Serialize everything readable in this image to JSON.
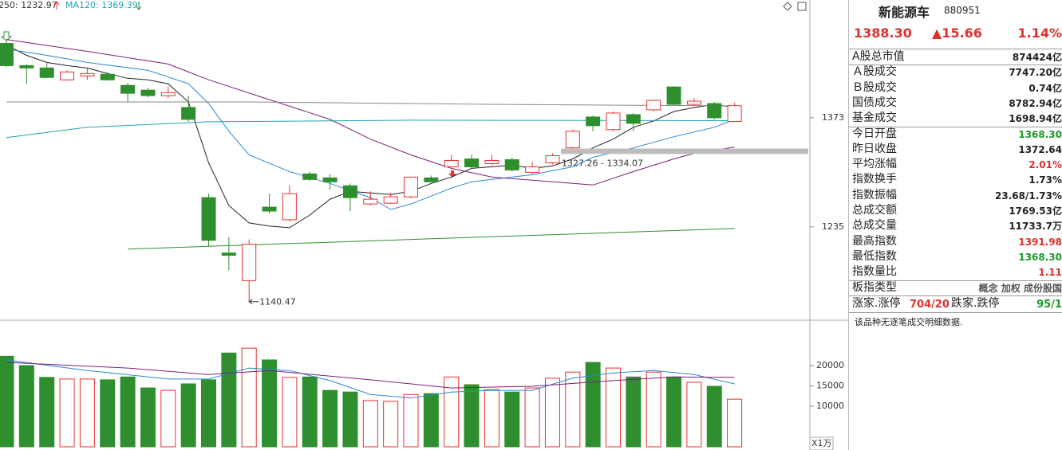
{
  "chart_data": [
    {
      "type": "candlestick",
      "open": [
        1467,
        1439,
        1436,
        1421,
        1426,
        1428,
        1414,
        1408,
        1401,
        1386,
        1272,
        1202,
        1167,
        1260,
        1244,
        1302,
        1297,
        1287,
        1264,
        1265,
        1273,
        1297,
        1311,
        1321,
        1315,
        1320,
        1304,
        1316,
        1335,
        1374,
        1358,
        1377,
        1383,
        1412,
        1390,
        1391,
        1368.3
      ],
      "high": [
        1470,
        1441,
        1443,
        1433,
        1435,
        1431,
        1417,
        1411,
        1413,
        1401,
        1277,
        1222,
        1219,
        1277,
        1288,
        1305,
        1302,
        1290,
        1280,
        1278,
        1298,
        1300,
        1326,
        1326,
        1326,
        1323,
        1317,
        1328,
        1358,
        1376,
        1381,
        1379,
        1396,
        1413,
        1398,
        1393,
        1391.98
      ],
      "low": [
        1437,
        1416,
        1423,
        1420,
        1421,
        1420,
        1393,
        1399,
        1398,
        1368,
        1210,
        1180,
        1140.47,
        1252,
        1242,
        1293,
        1282,
        1255,
        1262,
        1264,
        1271,
        1292,
        1310,
        1309,
        1313,
        1305,
        1302,
        1314,
        1334,
        1356,
        1356,
        1356,
        1381,
        1389,
        1388,
        1371,
        1368.3
      ],
      "close": [
        1439,
        1436,
        1424,
        1431,
        1429,
        1421,
        1404,
        1401,
        1405,
        1371,
        1218,
        1199,
        1213,
        1255,
        1277,
        1295,
        1292,
        1272,
        1270,
        1273,
        1298,
        1292,
        1319,
        1311,
        1319,
        1307,
        1311,
        1325,
        1356,
        1363,
        1379,
        1366,
        1395,
        1390,
        1394,
        1373,
        1388.3
      ],
      "colors": {
        "up": "#e8312f",
        "down": "#2f8f2f"
      },
      "ylim": [
        1119,
        1522
      ],
      "yticks": [
        1235,
        1373
      ],
      "lines": [
        {
          "color": "#222222",
          "x": [
            0,
            1,
            2,
            3,
            4,
            5,
            6,
            7,
            8,
            9,
            10,
            11,
            12,
            13,
            14,
            15,
            16,
            17,
            18,
            19,
            20,
            21,
            22,
            23,
            24,
            25,
            26,
            27,
            28,
            29,
            30,
            31,
            32,
            33,
            34,
            35,
            36
          ],
          "values": [
            1465,
            1452,
            1443,
            1439,
            1436,
            1429,
            1423,
            1421,
            1416,
            1393,
            1316,
            1262,
            1240,
            1236,
            1234,
            1250,
            1270,
            1280,
            1278,
            1276,
            1280,
            1290,
            1298,
            1309,
            1311,
            1313,
            1309,
            1312,
            1321,
            1335,
            1346,
            1361,
            1369,
            1381,
            1386,
            1390,
            1386
          ]
        },
        {
          "color": "#2a8ad0",
          "x": [
            0,
            2,
            4,
            7,
            9,
            10,
            11,
            12,
            14,
            16,
            18,
            19,
            20,
            21,
            22,
            23,
            25,
            26,
            28,
            29,
            31,
            33,
            35,
            36
          ],
          "values": [
            1460,
            1452,
            1443,
            1433,
            1416,
            1391,
            1356,
            1326,
            1305,
            1290,
            1272,
            1257,
            1264,
            1274,
            1284,
            1292,
            1298,
            1301,
            1311,
            1323,
            1335,
            1349,
            1361,
            1371
          ]
        },
        {
          "color": "#7a1f7a",
          "x": [
            0,
            4,
            8,
            10,
            13,
            16,
            18,
            20,
            22,
            24,
            27,
            29,
            31,
            33,
            34,
            36
          ],
          "values": [
            1472,
            1457,
            1441,
            1421,
            1396,
            1371,
            1346,
            1326,
            1309,
            1298,
            1292,
            1288,
            1305,
            1321,
            1328,
            1336
          ]
        },
        {
          "color": "#888888",
          "x": [
            0,
            12,
            24,
            36
          ],
          "values": [
            1393,
            1393,
            1390,
            1388
          ]
        },
        {
          "name": "MA120: 1369.39",
          "color": "#1fa3b5",
          "x": [
            0,
            4,
            10,
            20,
            36
          ],
          "values": [
            1348,
            1361,
            1368,
            1370,
            1369.39
          ]
        },
        {
          "name": "250: 1232.97",
          "color": "#2f8f2f",
          "x": [
            6,
            36
          ],
          "values": [
            1207,
            1232.97
          ]
        }
      ],
      "gap": {
        "label": "1327.26 - 1334.07",
        "low": 1327.26,
        "high": 1334.07
      }
    },
    {
      "type": "bar",
      "values": [
        22300,
        20000,
        17100,
        16700,
        16700,
        16500,
        17200,
        14500,
        13900,
        15500,
        16500,
        23100,
        24300,
        21400,
        17100,
        17200,
        13900,
        13500,
        11400,
        11200,
        12900,
        13100,
        17200,
        15300,
        14100,
        13500,
        14500,
        16900,
        18400,
        20800,
        19400,
        17200,
        18400,
        17200,
        15900,
        14900,
        11733.7
      ],
      "ylim": [
        0,
        30600
      ],
      "yticks": [
        10000,
        15000,
        20000
      ],
      "y_unit_label": "X1万",
      "lines": [
        {
          "color": "#2a8ad0",
          "x": [
            0,
            4,
            8,
            10,
            12,
            14,
            16,
            18,
            20,
            22,
            24,
            26,
            28,
            30,
            32,
            34,
            36
          ],
          "values": [
            21400,
            18800,
            16700,
            16700,
            19400,
            18800,
            16300,
            12900,
            12000,
            13500,
            13900,
            13900,
            16900,
            18200,
            18800,
            17800,
            15500
          ]
        },
        {
          "color": "#7a1f7a",
          "x": [
            0,
            6,
            10,
            13,
            18,
            22,
            26,
            30,
            33,
            36
          ],
          "values": [
            20800,
            19400,
            17800,
            18800,
            16500,
            14500,
            14900,
            16300,
            17200,
            17100
          ]
        }
      ]
    }
  ],
  "panel": {
    "title": "新能源车",
    "code": "880951",
    "price": "1388.30",
    "change": "▲15.66",
    "change_pct": "1.14%",
    "rows": [
      {
        "label": "A股总市值",
        "value": "874424亿"
      },
      {
        "label": "Ａ股成交",
        "value": "7747.20亿"
      },
      {
        "label": "Ｂ股成交",
        "value": "0.74亿"
      },
      {
        "label": "国债成交",
        "value": "8782.94亿"
      },
      {
        "label": "基金成交",
        "value": "1698.94亿"
      },
      {
        "label": "今日开盘",
        "value": "1368.30",
        "color": "#1a9a2a"
      },
      {
        "label": "昨日收盘",
        "value": "1372.64"
      },
      {
        "label": "平均涨幅",
        "value": "2.01%",
        "color": "#e0302e"
      },
      {
        "label": "指数换手",
        "value": "1.73%"
      },
      {
        "label": "指数振幅",
        "value": "23.68/1.73%"
      },
      {
        "label": "总成交额",
        "value": "1769.53亿"
      },
      {
        "label": "总成交量",
        "value": "11733.7万"
      },
      {
        "label": "最高指数",
        "value": "1391.98",
        "color": "#e0302e"
      },
      {
        "label": "最低指数",
        "value": "1368.30",
        "color": "#1a9a2a"
      },
      {
        "label": "指数量比",
        "value": "1.11",
        "color": "#e0302e"
      },
      {
        "label": "板指类型",
        "value": "概念 加权 成份股国",
        "color": "#555555"
      }
    ],
    "breadth": {
      "up_label": "涨家.涨停",
      "up": "704/20",
      "down_label": "跌家.跌停",
      "down": "95/1"
    },
    "note": "该品种无逐笔成交明细数据."
  }
}
